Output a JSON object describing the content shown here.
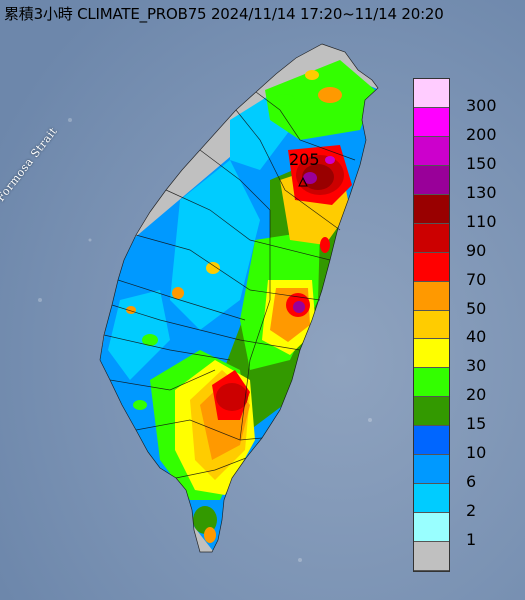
{
  "title": "累積3小時 CLIMATE_PROB75 2024/11/14 17:20~11/14 20:20",
  "strait_label": "Formosa Strait",
  "max_value": "205",
  "legend": [
    {
      "label": "300",
      "color": "#ffccff"
    },
    {
      "label": "200",
      "color": "#ff00ff"
    },
    {
      "label": "150",
      "color": "#cc00cc"
    },
    {
      "label": "130",
      "color": "#990099"
    },
    {
      "label": "110",
      "color": "#990000"
    },
    {
      "label": "90",
      "color": "#cc0000"
    },
    {
      "label": "70",
      "color": "#ff0000"
    },
    {
      "label": "50",
      "color": "#ff9900"
    },
    {
      "label": "40",
      "color": "#ffcc00"
    },
    {
      "label": "30",
      "color": "#ffff00"
    },
    {
      "label": "20",
      "color": "#33ff00"
    },
    {
      "label": "15",
      "color": "#339900"
    },
    {
      "label": "10",
      "color": "#0066ff"
    },
    {
      "label": "6",
      "color": "#0099ff"
    },
    {
      "label": "2",
      "color": "#00ccff"
    },
    {
      "label": "1",
      "color": "#99ffff"
    },
    {
      "label": "",
      "color": "#c0c0c0"
    }
  ]
}
